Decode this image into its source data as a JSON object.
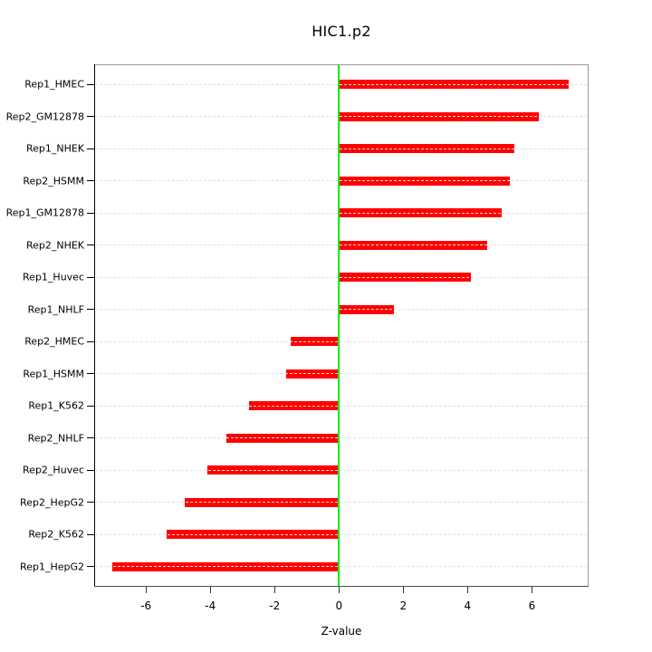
{
  "chart_data": {
    "type": "bar",
    "orientation": "horizontal",
    "order": "top-to-bottom",
    "title": "HIC1.p2",
    "xlabel": "Z-value",
    "ylabel": "",
    "categories": [
      "Rep1_HMEC",
      "Rep2_GM12878",
      "Rep1_NHEK",
      "Rep2_HSMM",
      "Rep1_GM12878",
      "Rep2_NHEK",
      "Rep1_Huvec",
      "Rep1_NHLF",
      "Rep2_HMEC",
      "Rep1_HSMM",
      "Rep1_K562",
      "Rep2_NHLF",
      "Rep2_Huvec",
      "Rep2_HepG2",
      "Rep2_K562",
      "Rep1_HepG2"
    ],
    "values": [
      7.15,
      6.2,
      5.45,
      5.3,
      5.05,
      4.6,
      4.1,
      1.7,
      -1.5,
      -1.65,
      -2.8,
      -3.5,
      -4.1,
      -4.8,
      -5.35,
      -7.05
    ],
    "x_ticks": [
      -6,
      -4,
      -2,
      0,
      2,
      4,
      6
    ],
    "xlim": [
      -7.6,
      7.75
    ],
    "grid": true,
    "legend": "none",
    "colors": {
      "bar": "#ff0000",
      "zero_line": "#00ee00",
      "grid": "#e2e2e2",
      "box": "#999999",
      "axis_left": "#000000",
      "axis_bottom": "#4d4d4d",
      "text": "#000000"
    }
  }
}
